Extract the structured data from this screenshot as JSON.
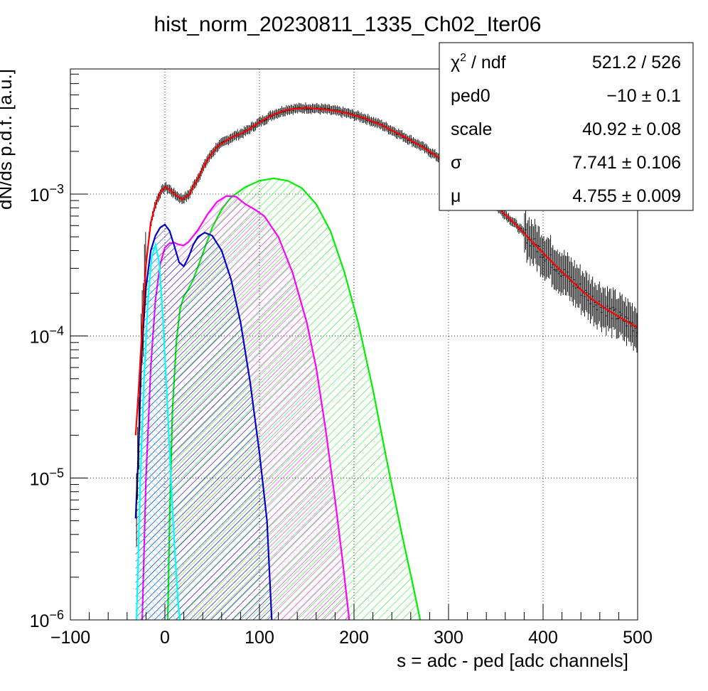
{
  "chart_data": {
    "type": "line",
    "title": "hist_norm_20230811_1335_Ch02_Iter06",
    "xlabel": "s = adc - ped [adc channels]",
    "ylabel": "dN/ds p.d.f. [a.u.]",
    "xlim": [
      -100,
      500
    ],
    "ylim": [
      1e-06,
      0.008
    ],
    "yscale": "log",
    "grid": true,
    "x_ticks": [
      "−100",
      "0",
      "100",
      "200",
      "300",
      "400",
      "500"
    ],
    "x_tick_values": [
      -100,
      0,
      100,
      200,
      300,
      400,
      500
    ],
    "y_ticks": [
      {
        "base": "10",
        "exp": "−6",
        "value": 1e-06
      },
      {
        "base": "10",
        "exp": "−5",
        "value": 1e-05
      },
      {
        "base": "10",
        "exp": "−4",
        "value": 0.0001
      },
      {
        "base": "10",
        "exp": "−3",
        "value": 0.001
      }
    ],
    "stats": [
      {
        "name_main": "χ",
        "name_sup": "2",
        "name_rest": " / ndf",
        "value": "521.2 / 526"
      },
      {
        "name_main": "ped0",
        "name_sup": "",
        "name_rest": "",
        "value": "−10 ± 0.1"
      },
      {
        "name_main": "scale",
        "name_sup": "",
        "name_rest": "",
        "value": "40.92 ± 0.08"
      },
      {
        "name_main": "σ",
        "name_sup": "",
        "name_rest": "",
        "value": "7.741 ± 0.106"
      },
      {
        "name_main": "μ",
        "name_sup": "",
        "name_rest": "",
        "value": "4.755 ± 0.009"
      }
    ],
    "series": [
      {
        "color": "#000000",
        "style": "data",
        "points": [
          [
            -31,
            2e-06
          ],
          [
            -30,
            6e-06
          ],
          [
            -28,
            2e-05
          ],
          [
            -25,
            9e-05
          ],
          [
            -20,
            0.00032
          ],
          [
            -15,
            0.00063
          ],
          [
            -10,
            0.00085
          ],
          [
            -5,
            0.00102
          ],
          [
            0,
            0.00112
          ],
          [
            5,
            0.00108
          ],
          [
            10,
            0.001
          ],
          [
            18,
            0.00092
          ],
          [
            25,
            0.00098
          ],
          [
            35,
            0.0013
          ],
          [
            45,
            0.00175
          ],
          [
            55,
            0.00215
          ],
          [
            70,
            0.0025
          ],
          [
            85,
            0.00275
          ],
          [
            100,
            0.0032
          ],
          [
            115,
            0.00365
          ],
          [
            130,
            0.00395
          ],
          [
            150,
            0.00405
          ],
          [
            170,
            0.00395
          ],
          [
            190,
            0.00375
          ],
          [
            210,
            0.00345
          ],
          [
            230,
            0.00305
          ],
          [
            250,
            0.0026
          ],
          [
            270,
            0.0022
          ],
          [
            290,
            0.0018
          ],
          [
            310,
            0.00142
          ],
          [
            330,
            0.0011
          ],
          [
            350,
            0.00083
          ],
          [
            370,
            0.00062
          ],
          [
            390,
            0.00045
          ],
          [
            410,
            0.00033
          ],
          [
            430,
            0.000245
          ],
          [
            450,
            0.000185
          ],
          [
            470,
            0.00015
          ],
          [
            490,
            0.000125
          ],
          [
            500,
            0.000115
          ]
        ]
      },
      {
        "color": "#ff0000",
        "style": "line",
        "points": [
          [
            -31,
            2e-05
          ],
          [
            -28,
            4e-05
          ],
          [
            -25,
            9e-05
          ],
          [
            -20,
            0.00032
          ],
          [
            -15,
            0.00063
          ],
          [
            -10,
            0.00085
          ],
          [
            -5,
            0.00102
          ],
          [
            0,
            0.00112
          ],
          [
            5,
            0.00108
          ],
          [
            10,
            0.001
          ],
          [
            18,
            0.00092
          ],
          [
            25,
            0.00098
          ],
          [
            35,
            0.0013
          ],
          [
            45,
            0.00175
          ],
          [
            55,
            0.00215
          ],
          [
            70,
            0.0025
          ],
          [
            85,
            0.00275
          ],
          [
            100,
            0.0032
          ],
          [
            115,
            0.00365
          ],
          [
            130,
            0.00395
          ],
          [
            150,
            0.00405
          ],
          [
            170,
            0.00395
          ],
          [
            190,
            0.00375
          ],
          [
            210,
            0.00345
          ],
          [
            230,
            0.00305
          ],
          [
            250,
            0.0026
          ],
          [
            270,
            0.0022
          ],
          [
            290,
            0.0018
          ],
          [
            310,
            0.00142
          ],
          [
            330,
            0.0011
          ],
          [
            350,
            0.00083
          ],
          [
            370,
            0.00062
          ],
          [
            390,
            0.00045
          ],
          [
            410,
            0.00033
          ],
          [
            430,
            0.000245
          ],
          [
            450,
            0.000185
          ],
          [
            470,
            0.00015
          ],
          [
            490,
            0.000125
          ],
          [
            500,
            0.000115
          ]
        ]
      },
      {
        "color": "#00ffff",
        "style": "filled",
        "points": [
          [
            -30,
            1e-06
          ],
          [
            -26,
            1e-05
          ],
          [
            -22,
            5e-05
          ],
          [
            -18,
            0.00018
          ],
          [
            -14,
            0.00036
          ],
          [
            -10,
            0.00044
          ],
          [
            -6,
            0.00033
          ],
          [
            -2,
            0.00013
          ],
          [
            2,
            4e-05
          ],
          [
            6,
            1.1e-05
          ],
          [
            10,
            3.5e-06
          ],
          [
            14,
            1.3e-06
          ],
          [
            16,
            1e-06
          ]
        ]
      },
      {
        "color": "#0000cc",
        "style": "filled",
        "points": [
          [
            -31,
            5.2e-06
          ],
          [
            -28,
            1.5e-05
          ],
          [
            -25,
            7e-05
          ],
          [
            -20,
            0.00022
          ],
          [
            -15,
            0.0004
          ],
          [
            -10,
            0.00051
          ],
          [
            -5,
            0.00058
          ],
          [
            0,
            0.00061
          ],
          [
            5,
            0.00055
          ],
          [
            10,
            0.00043
          ],
          [
            15,
            0.00033
          ],
          [
            20,
            0.00031
          ],
          [
            25,
            0.00036
          ],
          [
            30,
            0.00044
          ],
          [
            35,
            0.0005
          ],
          [
            42,
            0.000535
          ],
          [
            50,
            0.00051
          ],
          [
            60,
            0.0004
          ],
          [
            70,
            0.00025
          ],
          [
            80,
            0.000125
          ],
          [
            90,
            4.8e-05
          ],
          [
            100,
            1.5e-05
          ],
          [
            108,
            5e-06
          ],
          [
            113,
            1e-06
          ]
        ]
      },
      {
        "color": "#ff00ff",
        "style": "filled",
        "points": [
          [
            -24,
            1e-06
          ],
          [
            -20,
            1e-05
          ],
          [
            -15,
            6e-05
          ],
          [
            -10,
            0.00018
          ],
          [
            -5,
            0.00032
          ],
          [
            0,
            0.00042
          ],
          [
            5,
            0.00045
          ],
          [
            10,
            0.000455
          ],
          [
            15,
            0.00044
          ],
          [
            20,
            0.000435
          ],
          [
            25,
            0.00046
          ],
          [
            35,
            0.00056
          ],
          [
            45,
            0.00072
          ],
          [
            55,
            0.00088
          ],
          [
            65,
            0.00097
          ],
          [
            75,
            0.00096
          ],
          [
            85,
            0.00085
          ],
          [
            95,
            0.00078
          ],
          [
            105,
            0.0007
          ],
          [
            120,
            0.0005
          ],
          [
            135,
            0.00028
          ],
          [
            150,
            0.000125
          ],
          [
            160,
            6e-05
          ],
          [
            170,
            2.2e-05
          ],
          [
            180,
            7e-06
          ],
          [
            188,
            2.6e-06
          ],
          [
            195,
            1e-06
          ]
        ]
      },
      {
        "color": "#00ee00",
        "style": "filled",
        "points": [
          [
            3,
            1e-06
          ],
          [
            5,
            5e-06
          ],
          [
            8,
            3e-05
          ],
          [
            12,
            9e-05
          ],
          [
            16,
            0.000155
          ],
          [
            20,
            0.00019
          ],
          [
            25,
            0.000215
          ],
          [
            30,
            0.00025
          ],
          [
            40,
            0.00038
          ],
          [
            50,
            0.00058
          ],
          [
            60,
            0.00078
          ],
          [
            70,
            0.00095
          ],
          [
            85,
            0.00112
          ],
          [
            100,
            0.00124
          ],
          [
            115,
            0.00129
          ],
          [
            130,
            0.00124
          ],
          [
            145,
            0.0011
          ],
          [
            160,
            0.00085
          ],
          [
            175,
            0.00055
          ],
          [
            190,
            0.00028
          ],
          [
            205,
            0.00012
          ],
          [
            220,
            4.2e-05
          ],
          [
            235,
            1.3e-05
          ],
          [
            250,
            4.2e-06
          ],
          [
            262,
            1.8e-06
          ],
          [
            270,
            1e-06
          ]
        ]
      }
    ]
  }
}
